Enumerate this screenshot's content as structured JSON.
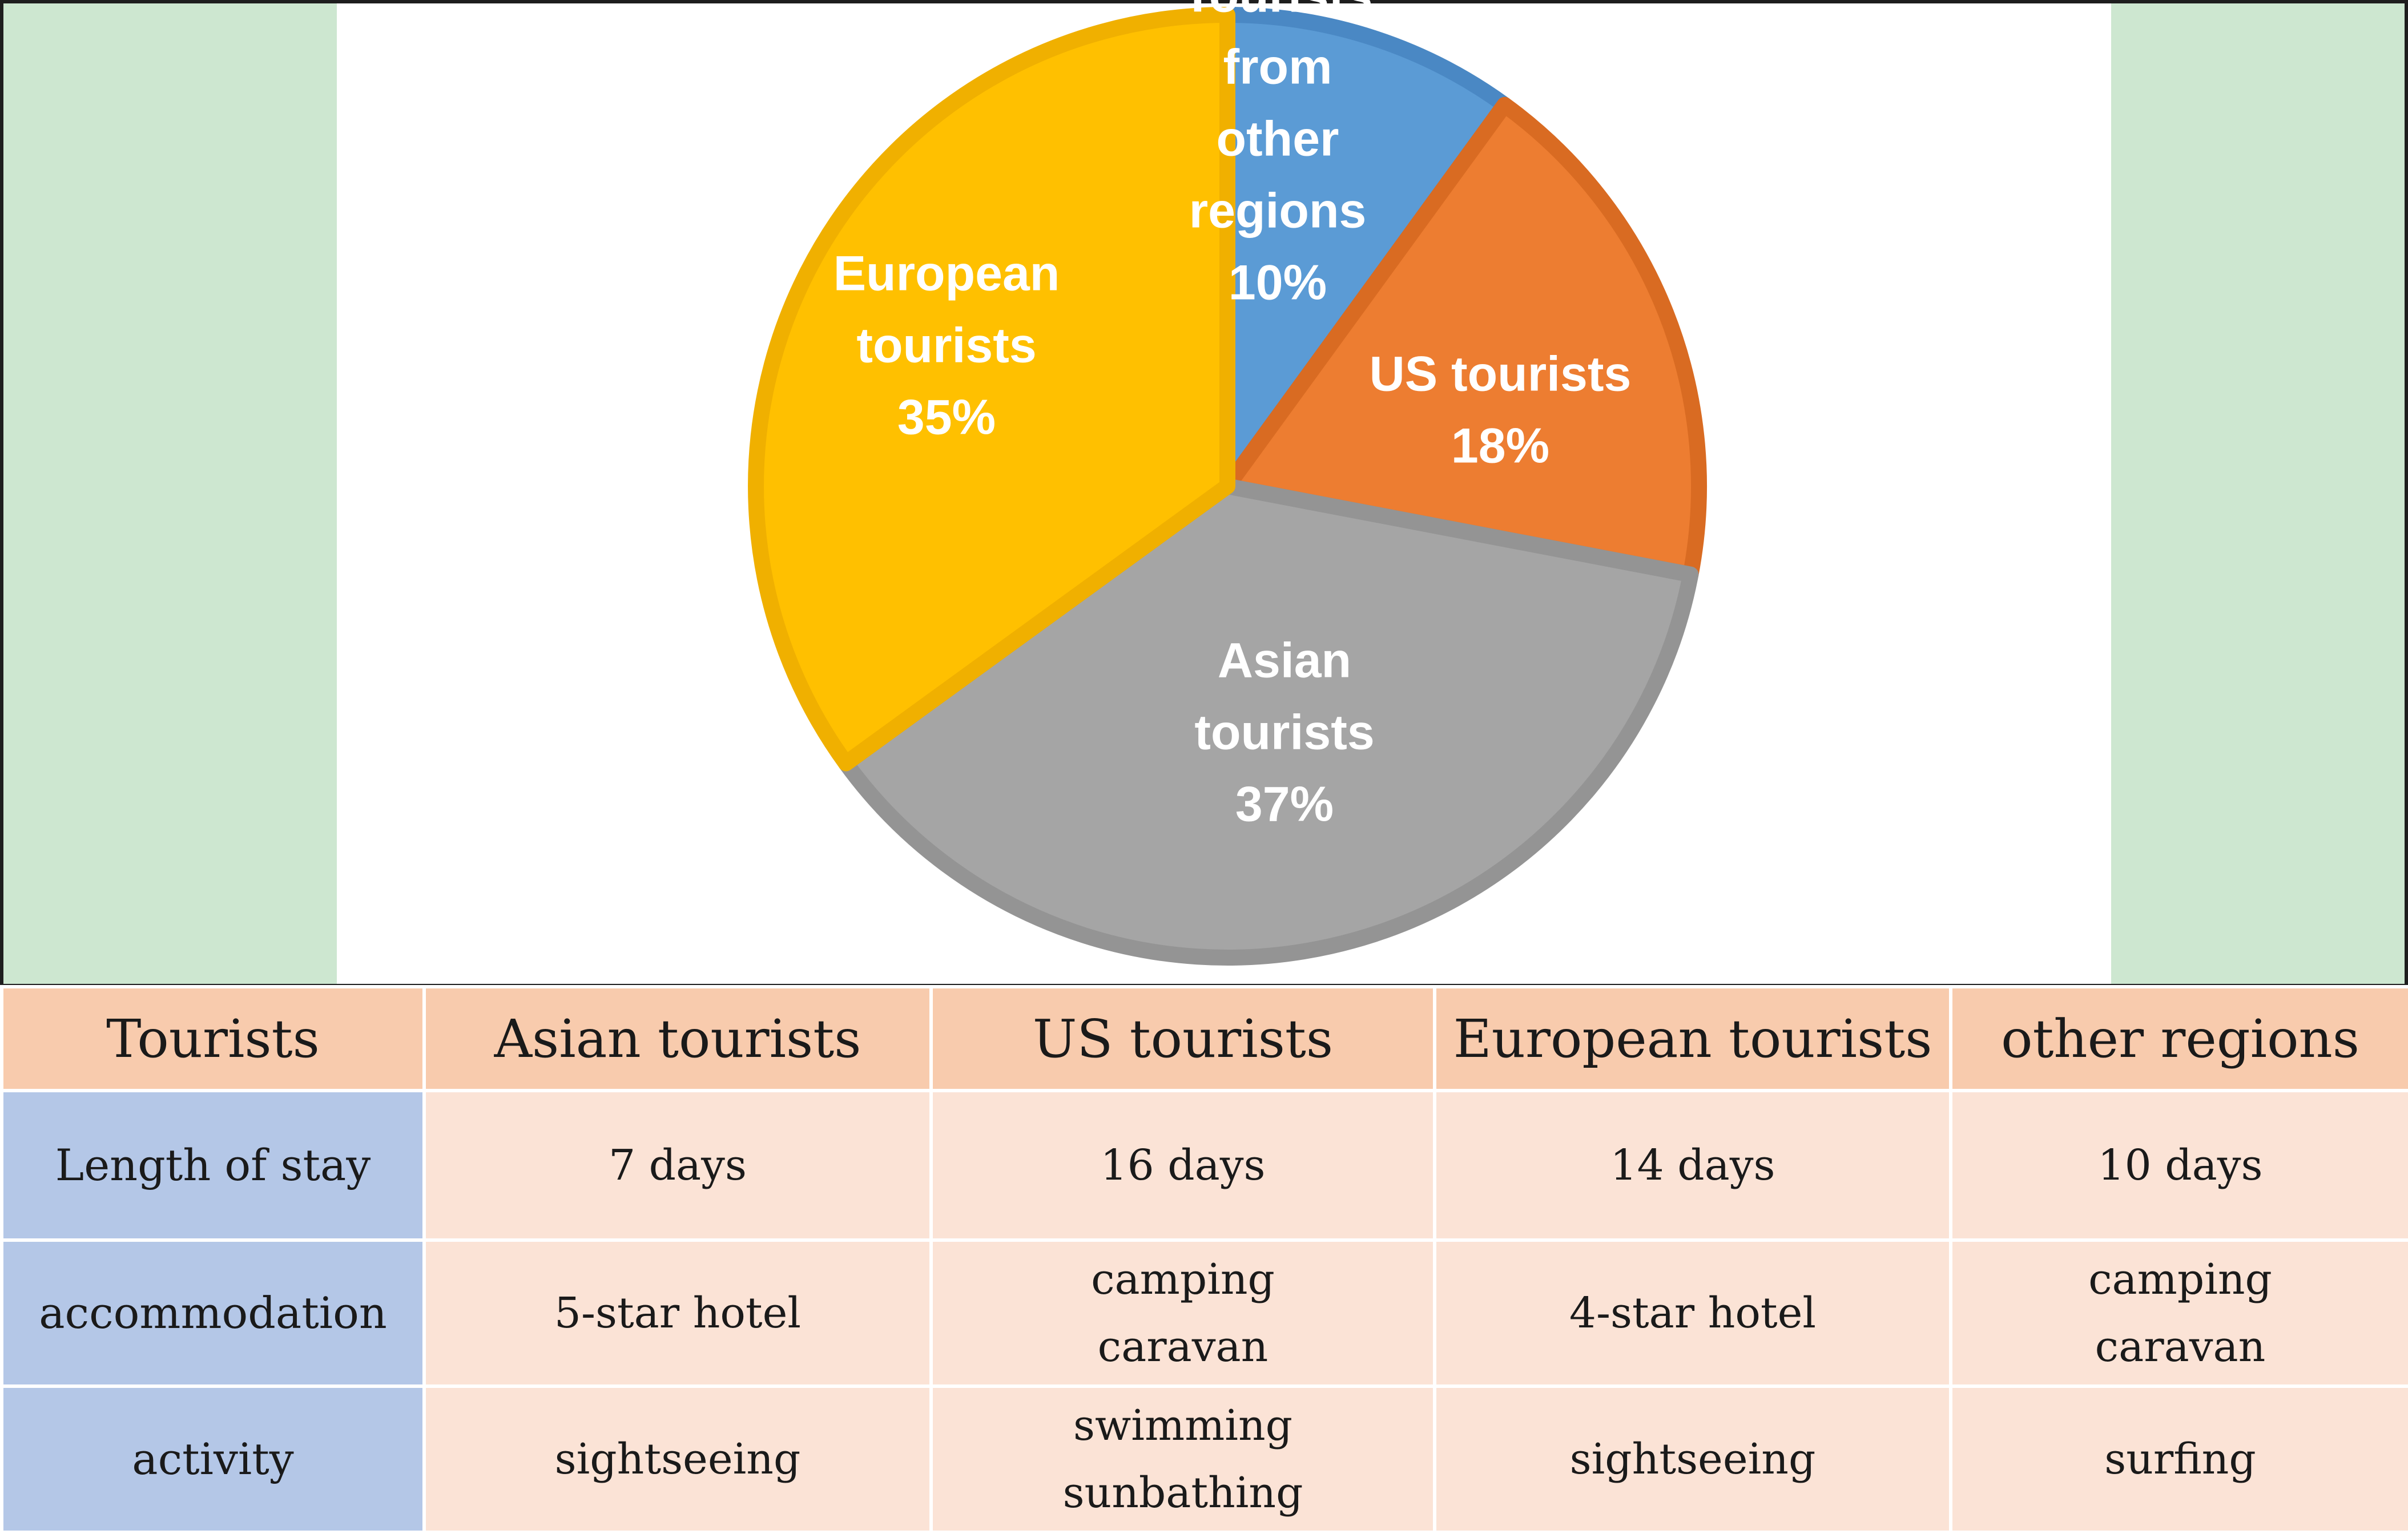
{
  "chart_data": {
    "type": "pie",
    "slices": [
      {
        "label_lines": [
          "Tourists",
          "from",
          "other",
          "regions"
        ],
        "percent_label": "10%",
        "value": 10,
        "color": "#5b9bd5",
        "edge": "#4a88c4"
      },
      {
        "label_lines": [
          "US tourists"
        ],
        "percent_label": "18%",
        "value": 18,
        "color": "#ed7d31",
        "edge": "#d96b22"
      },
      {
        "label_lines": [
          "Asian",
          "tourists"
        ],
        "percent_label": "37%",
        "value": 37,
        "color": "#a5a5a5",
        "edge": "#949494"
      },
      {
        "label_lines": [
          "European",
          "tourists"
        ],
        "percent_label": "35%",
        "value": 35,
        "color": "#ffc000",
        "edge": "#f0b000"
      }
    ]
  },
  "table": {
    "headers": [
      "Tourists",
      "Asian tourists",
      "US tourists",
      "European tourists",
      "other regions"
    ],
    "rows": [
      {
        "label": "Length of stay",
        "cells": [
          [
            "7 days"
          ],
          [
            "16 days"
          ],
          [
            "14 days"
          ],
          [
            "10 days"
          ]
        ]
      },
      {
        "label": "accommodation",
        "cells": [
          [
            "5-star hotel"
          ],
          [
            "camping",
            "caravan"
          ],
          [
            "4-star hotel"
          ],
          [
            "camping",
            "caravan"
          ]
        ]
      },
      {
        "label": "activity",
        "cells": [
          [
            "sightseeing"
          ],
          [
            "swimming",
            "sunbathing"
          ],
          [
            "sightseeing"
          ],
          [
            "surfing"
          ]
        ]
      }
    ]
  }
}
